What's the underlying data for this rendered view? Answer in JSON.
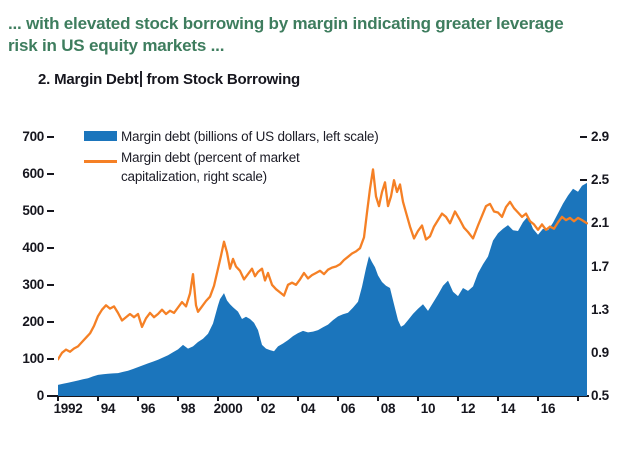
{
  "colors": {
    "headline_green": "#3e7d5e",
    "axis_text": "#16161e",
    "margin_debt_blue": "#1b75bc",
    "margin_debt_pct_orange": "#f58025",
    "background": "#ffffff"
  },
  "header": {
    "headline_line1": "... with elevated stock borrowing by margin indicating greater leverage",
    "headline_line2": "risk in US equity markets ..."
  },
  "chart": {
    "title_part1": "2. Margin Debt",
    "title_part2": " from Stock Borrowing",
    "legend": {
      "item1_label": "Margin debt (billions of US dollars, left scale)",
      "item2_label_line1": "Margin debt (percent of market",
      "item2_label_line2": "capitalization, right scale)"
    }
  },
  "chart_data": {
    "type": "area",
    "title": "2. Margin Debt from Stock Borrowing",
    "x_axis": {
      "range": [
        1992,
        2018.45
      ],
      "tick_years": [
        1992,
        1994,
        1996,
        1998,
        2000,
        2002,
        2004,
        2006,
        2008,
        2010,
        2012,
        2014,
        2016,
        2018
      ],
      "tick_labels": [
        "1992",
        "94",
        "96",
        "98",
        "2000",
        "02",
        "04",
        "06",
        "08",
        "10",
        "12",
        "14",
        "16",
        ""
      ]
    },
    "left_axis": {
      "min": 0,
      "max": 700,
      "ticks": [
        0,
        100,
        200,
        300,
        400,
        500,
        600,
        700
      ]
    },
    "right_axis": {
      "min": 0.5,
      "max": 2.9,
      "tick_labels": [
        "0.5",
        "0.9",
        "1.3",
        "1.7",
        "2.1",
        "2.5",
        "2.9"
      ]
    },
    "grid": false,
    "legend_position": "top-left",
    "series": [
      {
        "name": "Margin debt (billions of US dollars, left scale)",
        "type": "area",
        "axis": "left",
        "color": "#1b75bc",
        "points": [
          [
            1992.0,
            30
          ],
          [
            1992.25,
            33
          ],
          [
            1992.5,
            36
          ],
          [
            1992.75,
            39
          ],
          [
            1993.0,
            42
          ],
          [
            1993.25,
            45
          ],
          [
            1993.5,
            48
          ],
          [
            1993.75,
            53
          ],
          [
            1994.0,
            57
          ],
          [
            1994.25,
            59
          ],
          [
            1994.5,
            60
          ],
          [
            1994.75,
            61
          ],
          [
            1995.0,
            62
          ],
          [
            1995.25,
            65
          ],
          [
            1995.5,
            68
          ],
          [
            1995.75,
            73
          ],
          [
            1996.0,
            78
          ],
          [
            1996.25,
            83
          ],
          [
            1996.5,
            88
          ],
          [
            1996.75,
            93
          ],
          [
            1997.0,
            98
          ],
          [
            1997.25,
            104
          ],
          [
            1997.5,
            110
          ],
          [
            1997.75,
            118
          ],
          [
            1998.0,
            126
          ],
          [
            1998.25,
            138
          ],
          [
            1998.5,
            128
          ],
          [
            1998.75,
            134
          ],
          [
            1999.0,
            146
          ],
          [
            1999.25,
            155
          ],
          [
            1999.5,
            168
          ],
          [
            1999.75,
            196
          ],
          [
            2000.0,
            245
          ],
          [
            2000.1,
            262
          ],
          [
            2000.3,
            278
          ],
          [
            2000.45,
            258
          ],
          [
            2000.6,
            248
          ],
          [
            2000.75,
            240
          ],
          [
            2001.0,
            228
          ],
          [
            2001.2,
            208
          ],
          [
            2001.4,
            214
          ],
          [
            2001.6,
            208
          ],
          [
            2001.8,
            198
          ],
          [
            2002.0,
            178
          ],
          [
            2002.2,
            138
          ],
          [
            2002.4,
            128
          ],
          [
            2002.6,
            124
          ],
          [
            2002.8,
            121
          ],
          [
            2003.0,
            134
          ],
          [
            2003.25,
            142
          ],
          [
            2003.5,
            151
          ],
          [
            2003.75,
            162
          ],
          [
            2004.0,
            170
          ],
          [
            2004.25,
            176
          ],
          [
            2004.5,
            172
          ],
          [
            2004.75,
            174
          ],
          [
            2005.0,
            178
          ],
          [
            2005.25,
            186
          ],
          [
            2005.5,
            193
          ],
          [
            2005.75,
            205
          ],
          [
            2006.0,
            215
          ],
          [
            2006.25,
            221
          ],
          [
            2006.5,
            225
          ],
          [
            2006.75,
            239
          ],
          [
            2007.0,
            255
          ],
          [
            2007.2,
            295
          ],
          [
            2007.4,
            345
          ],
          [
            2007.55,
            378
          ],
          [
            2007.7,
            362
          ],
          [
            2007.85,
            348
          ],
          [
            2008.0,
            326
          ],
          [
            2008.2,
            308
          ],
          [
            2008.4,
            298
          ],
          [
            2008.6,
            292
          ],
          [
            2008.8,
            248
          ],
          [
            2009.0,
            205
          ],
          [
            2009.15,
            187
          ],
          [
            2009.3,
            192
          ],
          [
            2009.5,
            205
          ],
          [
            2009.75,
            222
          ],
          [
            2010.0,
            236
          ],
          [
            2010.25,
            248
          ],
          [
            2010.5,
            230
          ],
          [
            2010.75,
            252
          ],
          [
            2011.0,
            274
          ],
          [
            2011.25,
            298
          ],
          [
            2011.5,
            312
          ],
          [
            2011.75,
            282
          ],
          [
            2012.0,
            270
          ],
          [
            2012.25,
            292
          ],
          [
            2012.5,
            284
          ],
          [
            2012.75,
            296
          ],
          [
            2013.0,
            332
          ],
          [
            2013.25,
            356
          ],
          [
            2013.5,
            377
          ],
          [
            2013.75,
            420
          ],
          [
            2014.0,
            440
          ],
          [
            2014.25,
            452
          ],
          [
            2014.5,
            462
          ],
          [
            2014.75,
            448
          ],
          [
            2015.0,
            446
          ],
          [
            2015.25,
            470
          ],
          [
            2015.5,
            486
          ],
          [
            2015.75,
            452
          ],
          [
            2016.0,
            436
          ],
          [
            2016.25,
            452
          ],
          [
            2016.5,
            448
          ],
          [
            2016.75,
            468
          ],
          [
            2017.0,
            494
          ],
          [
            2017.25,
            520
          ],
          [
            2017.5,
            542
          ],
          [
            2017.75,
            560
          ],
          [
            2018.0,
            552
          ],
          [
            2018.2,
            568
          ],
          [
            2018.45,
            576
          ]
        ]
      },
      {
        "name": "Margin debt (percent of market capitalization, right scale)",
        "type": "line",
        "axis": "right",
        "color": "#f58025",
        "points": [
          [
            1992.0,
            0.84
          ],
          [
            1992.2,
            0.9
          ],
          [
            1992.4,
            0.93
          ],
          [
            1992.6,
            0.91
          ],
          [
            1992.8,
            0.94
          ],
          [
            1993.0,
            0.96
          ],
          [
            1993.2,
            1.0
          ],
          [
            1993.4,
            1.04
          ],
          [
            1993.6,
            1.08
          ],
          [
            1993.8,
            1.15
          ],
          [
            1994.0,
            1.24
          ],
          [
            1994.2,
            1.3
          ],
          [
            1994.4,
            1.34
          ],
          [
            1994.6,
            1.31
          ],
          [
            1994.8,
            1.33
          ],
          [
            1995.0,
            1.27
          ],
          [
            1995.2,
            1.2
          ],
          [
            1995.4,
            1.23
          ],
          [
            1995.6,
            1.26
          ],
          [
            1995.8,
            1.23
          ],
          [
            1996.0,
            1.26
          ],
          [
            1996.2,
            1.14
          ],
          [
            1996.4,
            1.22
          ],
          [
            1996.6,
            1.27
          ],
          [
            1996.8,
            1.23
          ],
          [
            1997.0,
            1.26
          ],
          [
            1997.2,
            1.3
          ],
          [
            1997.4,
            1.26
          ],
          [
            1997.6,
            1.29
          ],
          [
            1997.8,
            1.27
          ],
          [
            1998.0,
            1.32
          ],
          [
            1998.2,
            1.37
          ],
          [
            1998.4,
            1.33
          ],
          [
            1998.6,
            1.45
          ],
          [
            1998.75,
            1.63
          ],
          [
            1998.9,
            1.34
          ],
          [
            1999.0,
            1.28
          ],
          [
            1999.2,
            1.33
          ],
          [
            1999.4,
            1.38
          ],
          [
            1999.6,
            1.42
          ],
          [
            1999.8,
            1.52
          ],
          [
            2000.0,
            1.68
          ],
          [
            2000.15,
            1.8
          ],
          [
            2000.3,
            1.93
          ],
          [
            2000.45,
            1.83
          ],
          [
            2000.6,
            1.68
          ],
          [
            2000.75,
            1.77
          ],
          [
            2000.9,
            1.7
          ],
          [
            2001.1,
            1.66
          ],
          [
            2001.3,
            1.58
          ],
          [
            2001.5,
            1.63
          ],
          [
            2001.7,
            1.68
          ],
          [
            2001.85,
            1.61
          ],
          [
            2002.0,
            1.65
          ],
          [
            2002.2,
            1.68
          ],
          [
            2002.35,
            1.57
          ],
          [
            2002.5,
            1.64
          ],
          [
            2002.7,
            1.53
          ],
          [
            2002.9,
            1.49
          ],
          [
            2003.1,
            1.46
          ],
          [
            2003.3,
            1.43
          ],
          [
            2003.5,
            1.53
          ],
          [
            2003.7,
            1.55
          ],
          [
            2003.9,
            1.53
          ],
          [
            2004.1,
            1.58
          ],
          [
            2004.3,
            1.64
          ],
          [
            2004.5,
            1.59
          ],
          [
            2004.7,
            1.62
          ],
          [
            2004.9,
            1.64
          ],
          [
            2005.1,
            1.66
          ],
          [
            2005.3,
            1.63
          ],
          [
            2005.5,
            1.67
          ],
          [
            2005.7,
            1.69
          ],
          [
            2005.9,
            1.7
          ],
          [
            2006.1,
            1.72
          ],
          [
            2006.3,
            1.76
          ],
          [
            2006.5,
            1.79
          ],
          [
            2006.7,
            1.82
          ],
          [
            2006.9,
            1.84
          ],
          [
            2007.1,
            1.87
          ],
          [
            2007.3,
            1.97
          ],
          [
            2007.45,
            2.2
          ],
          [
            2007.6,
            2.42
          ],
          [
            2007.75,
            2.6
          ],
          [
            2007.9,
            2.35
          ],
          [
            2008.05,
            2.26
          ],
          [
            2008.2,
            2.39
          ],
          [
            2008.35,
            2.48
          ],
          [
            2008.5,
            2.26
          ],
          [
            2008.65,
            2.35
          ],
          [
            2008.8,
            2.5
          ],
          [
            2008.95,
            2.39
          ],
          [
            2009.1,
            2.46
          ],
          [
            2009.25,
            2.3
          ],
          [
            2009.4,
            2.2
          ],
          [
            2009.6,
            2.07
          ],
          [
            2009.8,
            1.96
          ],
          [
            2010.0,
            2.03
          ],
          [
            2010.2,
            2.08
          ],
          [
            2010.4,
            1.95
          ],
          [
            2010.6,
            1.98
          ],
          [
            2010.8,
            2.07
          ],
          [
            2011.0,
            2.13
          ],
          [
            2011.2,
            2.19
          ],
          [
            2011.4,
            2.16
          ],
          [
            2011.6,
            2.1
          ],
          [
            2011.85,
            2.21
          ],
          [
            2012.1,
            2.13
          ],
          [
            2012.3,
            2.06
          ],
          [
            2012.5,
            2.02
          ],
          [
            2012.75,
            1.96
          ],
          [
            2013.0,
            2.08
          ],
          [
            2013.2,
            2.17
          ],
          [
            2013.4,
            2.26
          ],
          [
            2013.6,
            2.28
          ],
          [
            2013.8,
            2.21
          ],
          [
            2014.0,
            2.2
          ],
          [
            2014.2,
            2.16
          ],
          [
            2014.4,
            2.25
          ],
          [
            2014.6,
            2.3
          ],
          [
            2014.8,
            2.24
          ],
          [
            2015.0,
            2.2
          ],
          [
            2015.2,
            2.16
          ],
          [
            2015.4,
            2.19
          ],
          [
            2015.6,
            2.12
          ],
          [
            2015.8,
            2.09
          ],
          [
            2016.0,
            2.04
          ],
          [
            2016.2,
            2.09
          ],
          [
            2016.4,
            2.04
          ],
          [
            2016.6,
            2.07
          ],
          [
            2016.8,
            2.05
          ],
          [
            2017.0,
            2.11
          ],
          [
            2017.2,
            2.16
          ],
          [
            2017.4,
            2.13
          ],
          [
            2017.6,
            2.15
          ],
          [
            2017.8,
            2.12
          ],
          [
            2018.0,
            2.15
          ],
          [
            2018.2,
            2.13
          ],
          [
            2018.45,
            2.1
          ]
        ]
      }
    ]
  }
}
